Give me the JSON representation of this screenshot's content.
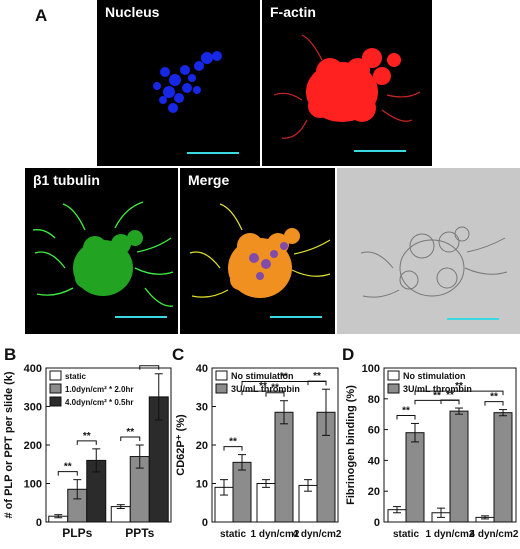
{
  "panels": {
    "A": {
      "letter": "A",
      "images": [
        {
          "label": "Nucleus",
          "icon": "blue-nuclei-image"
        },
        {
          "label": "F-actin",
          "icon": "red-actin-image"
        },
        {
          "label": "β1 tubulin",
          "icon": "green-tubulin-image"
        },
        {
          "label": "Merge",
          "icon": "merge-image"
        },
        {
          "label": "",
          "icon": "brightfield-image"
        }
      ],
      "colors": {
        "nucleus": "#1a2cff",
        "factin": "#ff2020",
        "tubulin": "#30e030",
        "scalebar": "#3ad8e0"
      }
    },
    "B": {
      "letter": "B"
    },
    "C": {
      "letter": "C"
    },
    "D": {
      "letter": "D"
    }
  },
  "chart_data": [
    {
      "id": "B",
      "type": "bar",
      "ylabel": "# of PLP or PPT per slide (k)",
      "xlabel": "",
      "categories": [
        "PLPs",
        "PPTs"
      ],
      "ylim": [
        0,
        400
      ],
      "yticks": [
        0,
        100,
        200,
        300,
        400
      ],
      "series": [
        {
          "name": "static",
          "color": "#ffffff",
          "values": [
            15,
            40
          ],
          "errors": [
            4,
            5
          ]
        },
        {
          "name": "1.0dyn/cm² * 2.0hr",
          "color": "#8c8c8c",
          "values": [
            85,
            170
          ],
          "errors": [
            25,
            30
          ]
        },
        {
          "name": "4.0dyn/cm² * 0.5hr",
          "color": "#2b2b2b",
          "values": [
            160,
            325
          ],
          "errors": [
            30,
            60
          ]
        }
      ],
      "significance": [
        {
          "between": [
            0,
            1
          ],
          "group": 0,
          "label": "**"
        },
        {
          "between": [
            1,
            2
          ],
          "group": 0,
          "label": "**"
        },
        {
          "between": [
            0,
            1
          ],
          "group": 1,
          "label": "**"
        },
        {
          "between": [
            1,
            2
          ],
          "group": 1,
          "label": "**"
        }
      ]
    },
    {
      "id": "C",
      "type": "bar",
      "ylabel": "CD62P⁺ (%)",
      "xlabel": "",
      "categories": [
        "static",
        "1 dyn/cm2",
        "4 dyn/cm2"
      ],
      "ylim": [
        0,
        40
      ],
      "yticks": [
        0,
        10,
        20,
        30,
        40
      ],
      "series": [
        {
          "name": "No stimulation",
          "color": "#ffffff",
          "values": [
            9,
            10,
            9.5
          ],
          "errors": [
            2,
            1,
            1.5
          ]
        },
        {
          "name": "3U/mL thrombin",
          "color": "#8c8c8c",
          "values": [
            15.5,
            28.5,
            28.5
          ],
          "errors": [
            2,
            3,
            6
          ]
        }
      ],
      "significance": [
        {
          "label": "**",
          "type": "within",
          "group": 0
        },
        {
          "label": "**",
          "type": "within",
          "group": 1
        },
        {
          "label": "**",
          "type": "within",
          "group": 2
        },
        {
          "label": "**",
          "type": "across",
          "from": 0,
          "to": 1
        },
        {
          "label": "**",
          "type": "across",
          "from": 0,
          "to": 2
        }
      ]
    },
    {
      "id": "D",
      "type": "bar",
      "ylabel": "Fibrinogen binding (%)",
      "xlabel": "",
      "categories": [
        "static",
        "1 dyn/cm2",
        "4 dyn/cm2"
      ],
      "ylim": [
        0,
        100
      ],
      "yticks": [
        0,
        20,
        40,
        60,
        80,
        100
      ],
      "series": [
        {
          "name": "No stimulation",
          "color": "#ffffff",
          "values": [
            8,
            6,
            3
          ],
          "errors": [
            2,
            3,
            1
          ]
        },
        {
          "name": "3U/mL thrombin",
          "color": "#8c8c8c",
          "values": [
            58,
            72,
            71
          ],
          "errors": [
            6,
            2,
            2
          ]
        }
      ],
      "significance": [
        {
          "label": "**",
          "type": "within",
          "group": 0
        },
        {
          "label": "**",
          "type": "within",
          "group": 1
        },
        {
          "label": "**",
          "type": "within",
          "group": 2
        },
        {
          "label": "**",
          "type": "across",
          "from": 0,
          "to": 1
        },
        {
          "label": "**",
          "type": "across",
          "from": 0,
          "to": 2
        }
      ]
    }
  ]
}
